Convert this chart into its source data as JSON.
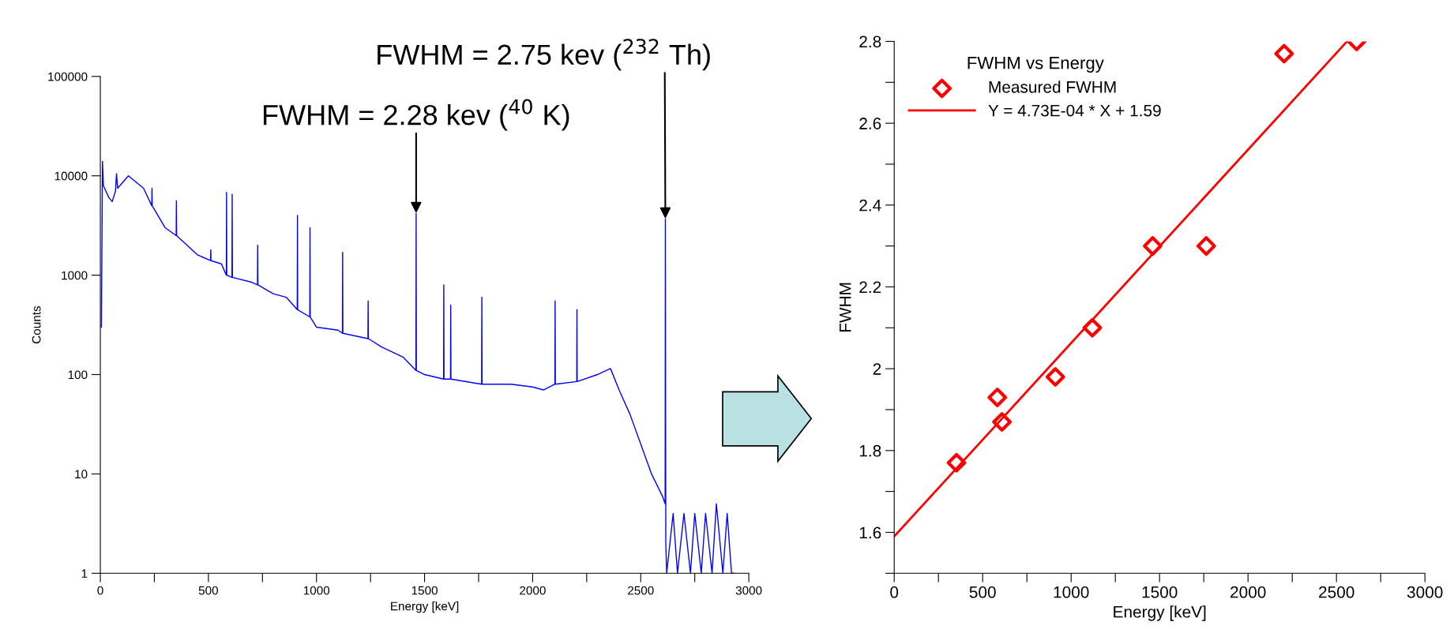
{
  "chart_data": [
    {
      "type": "line",
      "xlabel": "Energy [keV]",
      "ylabel": "Counts",
      "log": "y",
      "grid": false,
      "color": "#0000ff",
      "line_style": "solid",
      "xlim": [
        0,
        3000
      ],
      "ylim": [
        1,
        100000
      ],
      "xticks": [
        0,
        {
          "value": 250,
          "label": null
        },
        500,
        {
          "value": 750,
          "label": null
        },
        1000,
        {
          "value": 1250,
          "label": null
        },
        1500,
        {
          "value": 1750,
          "label": null
        },
        2000,
        {
          "value": 2250,
          "label": null
        },
        2500,
        {
          "value": 2750,
          "label": null
        },
        3000
      ],
      "yticks": [
        1,
        10,
        100,
        1000,
        10000,
        100000
      ],
      "annotations": [
        {
          "text": "FWHM = 2.28 kev ($^{40}$ K)",
          "x": 1461,
          "y": 4200
        },
        {
          "text": "FWHM = 2.75 kev ($^{232}$ Th)",
          "x": 2614,
          "y": 3700
        }
      ],
      "x": [
        5,
        10,
        14,
        40,
        55,
        70,
        75,
        80,
        130,
        200,
        238,
        239,
        240,
        300,
        351,
        352,
        353,
        450,
        510,
        511,
        512,
        560,
        583,
        584,
        585,
        609,
        610,
        611,
        700,
        727,
        728,
        729,
        800,
        860,
        911,
        912,
        913,
        969,
        970,
        971,
        1000,
        1100,
        1120,
        1121,
        1122,
        1238,
        1239,
        1240,
        1300,
        1400,
        1460,
        1461,
        1462,
        1500,
        1588,
        1589,
        1590,
        1620,
        1621,
        1622,
        1764,
        1765,
        1766,
        1900,
        2000,
        2050,
        2103,
        2104,
        2105,
        2204,
        2205,
        2206,
        2300,
        2360,
        2400,
        2450,
        2500,
        2550,
        2600,
        2613,
        2614,
        2616,
        2620,
        2650,
        2670,
        2700,
        2730,
        2750,
        2780,
        2800,
        2830,
        2850,
        2880,
        2900,
        2920,
        2930
      ],
      "values": [
        300,
        14000,
        8000,
        6000,
        5500,
        7000,
        10500,
        7500,
        10000,
        7500,
        5000,
        7500,
        5000,
        3000,
        2500,
        5600,
        2500,
        1600,
        1400,
        1800,
        1400,
        1300,
        1000,
        6800,
        1000,
        950,
        6500,
        950,
        850,
        800,
        2000,
        800,
        650,
        600,
        450,
        4000,
        450,
        380,
        3000,
        380,
        300,
        280,
        260,
        1700,
        260,
        230,
        550,
        230,
        190,
        150,
        110,
        4200,
        110,
        100,
        90,
        800,
        90,
        90,
        500,
        90,
        80,
        600,
        80,
        80,
        75,
        70,
        80,
        550,
        80,
        85,
        450,
        85,
        100,
        115,
        70,
        40,
        20,
        10,
        6,
        5,
        3700,
        2,
        1,
        4,
        1,
        4,
        1,
        4,
        1,
        4,
        1,
        5,
        1,
        4,
        1,
        1
      ]
    },
    {
      "type": "scatter",
      "xlabel": "Energy [keV]",
      "ylabel": "FWHM",
      "legend_title": "FWHM vs Energy",
      "legend": "top left",
      "grid": false,
      "xlim": [
        0,
        3000
      ],
      "ylim": [
        1.5,
        2.8
      ],
      "xticks": [
        0,
        {
          "value": 250,
          "label": null
        },
        500,
        {
          "value": 750,
          "label": null
        },
        1000,
        {
          "value": 1250,
          "label": null
        },
        1500,
        {
          "value": 1750,
          "label": null
        },
        2000,
        {
          "value": 2250,
          "label": null
        },
        2500,
        {
          "value": 2750,
          "label": null
        },
        3000
      ],
      "yticks": [
        {
          "value": 1.5,
          "label": null
        },
        1.6,
        {
          "value": 1.7,
          "label": null
        },
        1.8,
        {
          "value": 1.9,
          "label": null
        },
        {
          "value": 2,
          "label": "2"
        },
        {
          "value": 2.1,
          "label": null
        },
        2.2,
        {
          "value": 2.3,
          "label": null
        },
        2.4,
        {
          "value": 2.5,
          "label": null
        },
        2.6,
        {
          "value": 2.7,
          "label": null
        },
        2.8
      ],
      "series": [
        {
          "name": "Measured FWHM",
          "type": "scatter",
          "marker": "diamond",
          "color": "#ff0000",
          "x": [
            352,
            583,
            609,
            911,
            1120,
            1461,
            1764,
            2204,
            2614
          ],
          "values": [
            1.77,
            1.93,
            1.87,
            1.98,
            2.1,
            2.3,
            2.3,
            2.77,
            2.8
          ]
        },
        {
          "name": "Y = 4.73E-04 * X + 1.59",
          "type": "line",
          "marker": "none",
          "line_style": "solid",
          "color": "#ff0000",
          "x": [
            0,
            2560
          ],
          "values": [
            1.59,
            2.8
          ]
        }
      ]
    }
  ]
}
